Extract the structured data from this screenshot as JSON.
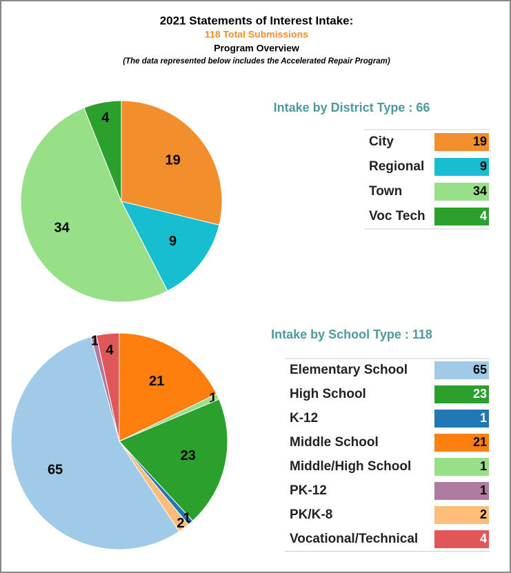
{
  "header": {
    "title": "2021 Statements of Interest Intake:",
    "subtitle": "118 Total Submissions",
    "section": "Program Overview",
    "note": "(The data represented below includes the Accelerated Repair Program)"
  },
  "chart_data": [
    {
      "type": "pie",
      "title": "Intake by District Type : 66",
      "categories": [
        "City",
        "Regional",
        "Town",
        "Voc Tech"
      ],
      "values": [
        19,
        9,
        34,
        4
      ],
      "colors": [
        "#f28e2b",
        "#17becf",
        "#98df8a",
        "#2ca02c"
      ]
    },
    {
      "type": "pie",
      "title": "Intake by School Type : 118",
      "categories": [
        "Elementary School",
        "High School",
        "K-12",
        "Middle School",
        "Middle/High School",
        "PK-12",
        "PK/K-8",
        "Vocational/Technical"
      ],
      "values": [
        65,
        23,
        1,
        21,
        1,
        1,
        2,
        4
      ],
      "colors": [
        "#a0cbe8",
        "#2ca02c",
        "#1f77b4",
        "#ff7f0e",
        "#98df8a",
        "#b07aa1",
        "#ffbb78",
        "#e15759"
      ]
    }
  ]
}
